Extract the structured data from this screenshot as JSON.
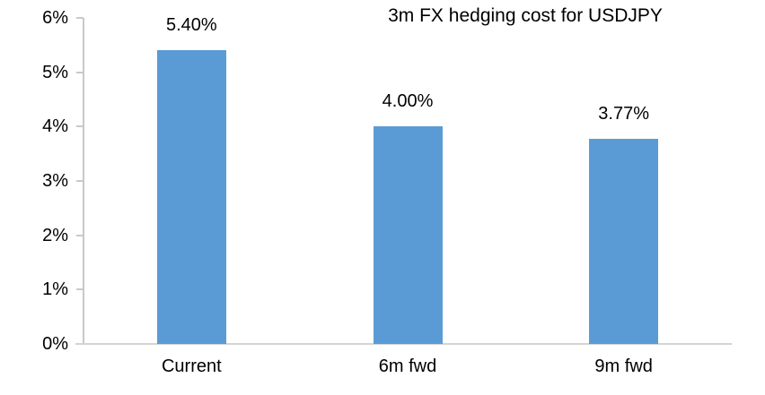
{
  "chart_data": {
    "type": "bar",
    "title": "3m FX hedging cost for USDJPY",
    "categories": [
      "Current",
      "6m fwd",
      "9m fwd"
    ],
    "values": [
      5.4,
      4.0,
      3.77
    ],
    "value_labels": [
      "5.40%",
      "4.00%",
      "3.77%"
    ],
    "ytick_labels": [
      "0%",
      "1%",
      "2%",
      "3%",
      "4%",
      "5%",
      "6%"
    ],
    "ylim": [
      0,
      6
    ],
    "xlabel": "",
    "ylabel": "",
    "grid": false,
    "legend_position": "none",
    "bar_color": "#5b9bd5",
    "axis_color": "#c9c9c9",
    "text_color": "#000000"
  }
}
